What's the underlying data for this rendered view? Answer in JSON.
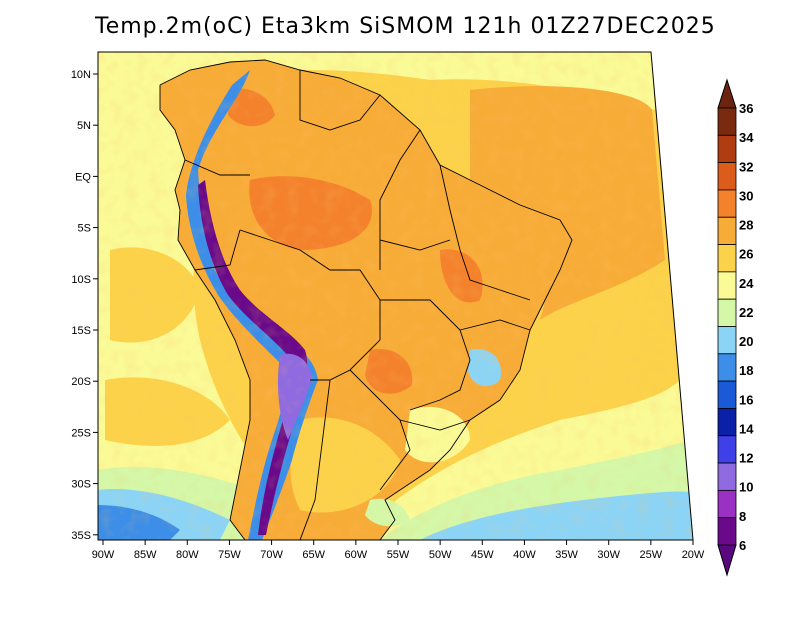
{
  "title": "Temp.2m(oC) Eta3km SiSMOM 121h 01Z27DEC2025",
  "variable": "2 m air temperature",
  "units": "oC",
  "axes": {
    "lon_labels": [
      "90W",
      "85W",
      "80W",
      "75W",
      "70W",
      "65W",
      "60W",
      "55W",
      "50W",
      "45W",
      "40W",
      "35W",
      "30W",
      "25W",
      "20W"
    ],
    "lat_labels": [
      "10N",
      "5N",
      "EQ",
      "5S",
      "10S",
      "15S",
      "20S",
      "25S",
      "30S",
      "35S"
    ]
  },
  "colorbar": {
    "labels": [
      "6",
      "8",
      "10",
      "12",
      "14",
      "16",
      "18",
      "20",
      "22",
      "24",
      "26",
      "28",
      "30",
      "32",
      "34",
      "36"
    ],
    "colors": [
      "#6a0a8a",
      "#9b30c4",
      "#8f6ae0",
      "#4040e8",
      "#0a20a8",
      "#1a5ad8",
      "#3c8ee8",
      "#8cd4f6",
      "#d4f8a8",
      "#fafa96",
      "#fcd24a",
      "#f8ac38",
      "#f4822c",
      "#dc5c1c",
      "#b03c12",
      "#7a2a0e"
    ],
    "under_color": "#5a0880",
    "over_color": "#6a2410"
  },
  "colors": {
    "ocean_default": "#fcd24a",
    "land_default": "#f8ac38",
    "coast_line": "#000000"
  }
}
